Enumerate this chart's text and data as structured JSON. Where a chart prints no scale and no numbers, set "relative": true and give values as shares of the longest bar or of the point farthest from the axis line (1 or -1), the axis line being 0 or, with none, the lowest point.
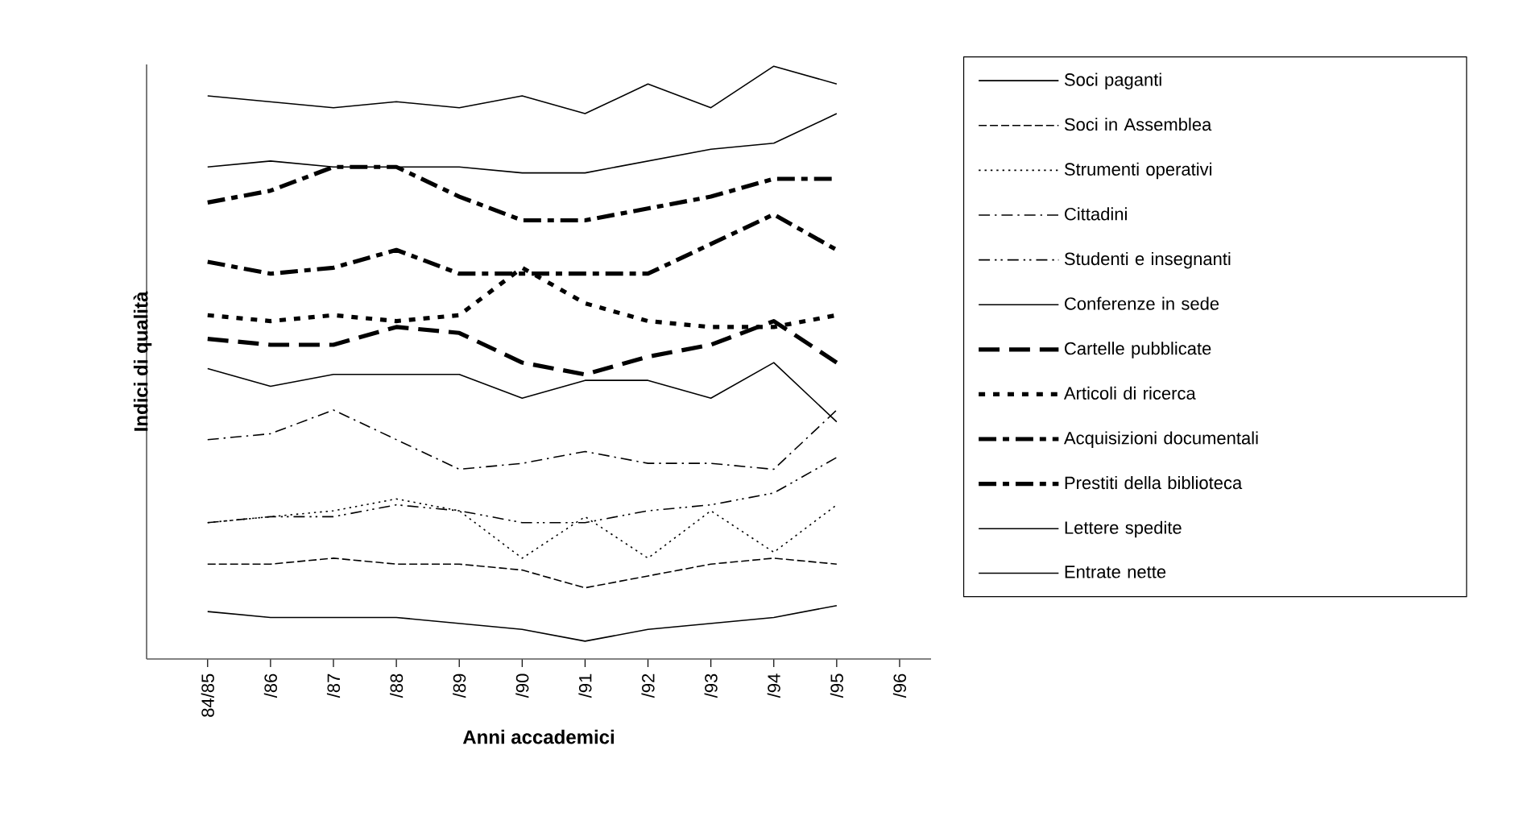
{
  "chart_data": {
    "type": "line",
    "relative": true,
    "xlabel": "Anni accademici",
    "ylabel": "Indici di qualità",
    "legend": "right",
    "categories": [
      "84/85",
      "/86",
      "/87",
      "/88",
      "/89",
      "/90",
      "/91",
      "/92",
      "/93",
      "/94",
      "/95",
      "/96"
    ],
    "series": [
      {
        "name": "Soci paganti",
        "color": "#000000",
        "line_style": "solid",
        "values": [
          0.08,
          0.07,
          0.07,
          0.07,
          0.06,
          0.05,
          0.03,
          0.05,
          0.06,
          0.07,
          0.09,
          null
        ]
      },
      {
        "name": "Soci in Assemblea",
        "color": "#000000",
        "line_style": "dashed",
        "values": [
          0.16,
          0.16,
          0.17,
          0.16,
          0.16,
          0.15,
          0.12,
          0.14,
          0.16,
          0.17,
          0.16,
          null
        ]
      },
      {
        "name": "Strumenti operativi",
        "color": "#000000",
        "line_style": "dotted",
        "values": [
          0.23,
          0.24,
          0.25,
          0.27,
          0.25,
          0.17,
          0.24,
          0.17,
          0.25,
          0.18,
          0.26,
          null
        ]
      },
      {
        "name": "Cittadini",
        "color": "#000000",
        "line_style": "dashdot",
        "values": [
          0.37,
          0.38,
          0.42,
          0.37,
          0.32,
          0.33,
          0.35,
          0.33,
          0.33,
          0.32,
          0.42,
          null
        ]
      },
      {
        "name": "Studenti e insegnanti",
        "color": "#000000",
        "line_style": "dashdotdot",
        "values": [
          0.23,
          0.24,
          0.24,
          0.26,
          0.25,
          0.23,
          0.23,
          0.25,
          0.26,
          0.28,
          0.34,
          null
        ]
      },
      {
        "name": "Conferenze in sede",
        "color": "#000000",
        "line_style": "solid",
        "values": [
          0.49,
          0.46,
          0.48,
          0.48,
          0.48,
          0.44,
          0.47,
          0.47,
          0.44,
          0.5,
          0.4,
          null
        ]
      },
      {
        "name": "Cartelle pubblicate",
        "color": "#000000",
        "line_style": "bold dashed",
        "values": [
          0.54,
          0.53,
          0.53,
          0.56,
          0.55,
          0.5,
          0.48,
          0.51,
          0.53,
          0.57,
          0.5,
          null
        ]
      },
      {
        "name": "Articoli di ricerca",
        "color": "#000000",
        "line_style": "bold dotted",
        "values": [
          0.58,
          0.57,
          0.58,
          0.57,
          0.58,
          0.66,
          0.6,
          0.57,
          0.56,
          0.56,
          0.58,
          null
        ]
      },
      {
        "name": "Acquisizioni documentali",
        "color": "#000000",
        "line_style": "bold dashdot",
        "values": [
          0.77,
          0.79,
          0.83,
          0.83,
          0.78,
          0.74,
          0.74,
          0.76,
          0.78,
          0.81,
          0.81,
          null
        ]
      },
      {
        "name": "Prestiti della biblioteca",
        "color": "#000000",
        "line_style": "bold dashdot",
        "values": [
          0.67,
          0.65,
          0.66,
          0.69,
          0.65,
          0.65,
          0.65,
          0.65,
          0.7,
          0.75,
          0.69,
          null
        ]
      },
      {
        "name": "Lettere spedite",
        "color": "#000000",
        "line_style": "solid",
        "values": [
          0.83,
          0.84,
          0.83,
          0.83,
          0.83,
          0.82,
          0.82,
          0.84,
          0.86,
          0.87,
          0.92,
          null
        ]
      },
      {
        "name": "Entrate nette",
        "color": "#000000",
        "line_style": "solid",
        "values": [
          0.95,
          0.94,
          0.93,
          0.94,
          0.93,
          0.95,
          0.92,
          0.97,
          0.93,
          1.0,
          0.97,
          null
        ]
      }
    ]
  }
}
